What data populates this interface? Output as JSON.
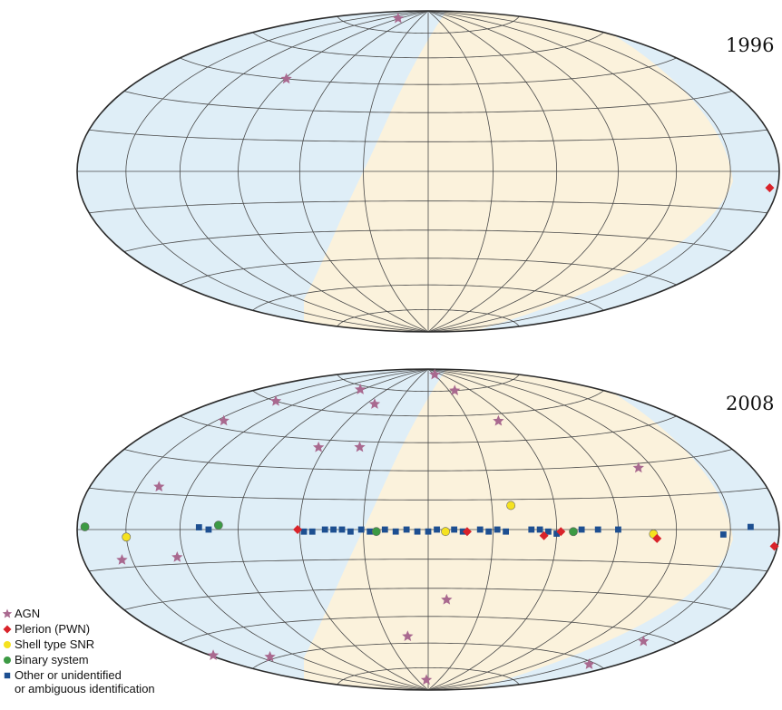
{
  "chart_data": [
    {
      "type": "scatter",
      "projection": "hammer-aitoff",
      "coordinates": "galactic",
      "label": "1996",
      "grid": true,
      "x_unit": "galactic longitude (deg)",
      "y_unit": "galactic latitude (deg)",
      "xlim": [
        180,
        -180
      ],
      "ylim": [
        -90,
        90
      ],
      "visible_sky_color": "#fbf2dc",
      "other_sky_color": "#dfeef7",
      "series": [
        {
          "name": "AGN",
          "marker": "star",
          "color": "#a9698f",
          "points": [
            [
              94,
              83
            ],
            [
              89,
              45
            ]
          ]
        },
        {
          "name": "Plerion (PWN)",
          "marker": "diamond",
          "color": "#d9232a",
          "points": [
            [
              -175,
              -6
            ]
          ]
        }
      ]
    },
    {
      "type": "scatter",
      "projection": "hammer-aitoff",
      "coordinates": "galactic",
      "label": "2008",
      "grid": true,
      "x_unit": "galactic longitude (deg)",
      "y_unit": "galactic latitude (deg)",
      "xlim": [
        180,
        -180
      ],
      "ylim": [
        -90,
        90
      ],
      "visible_sky_color": "#fbf2dc",
      "other_sky_color": "#dfeef7",
      "series": [
        {
          "name": "AGN",
          "marker": "star",
          "color": "#a9698f",
          "points": [
            [
              -32,
              86
            ],
            [
              -38,
              75
            ],
            [
              93,
              73
            ],
            [
              52,
              66
            ],
            [
              140,
              60
            ],
            [
              -52,
              56
            ],
            [
              145,
              48
            ],
            [
              40,
              42
            ],
            [
              64,
              41
            ],
            [
              -112,
              28
            ],
            [
              138,
              18
            ],
            [
              156,
              -12
            ],
            [
              124,
              -12
            ],
            [
              -10,
              -36
            ],
            [
              -156,
              -48
            ],
            [
              178,
              -52
            ],
            [
              15,
              -56
            ],
            [
              142,
              -59
            ],
            [
              -160,
              -61
            ],
            [
              5,
              -83
            ]
          ]
        },
        {
          "name": "Plerion (PWN)",
          "marker": "diamond",
          "color": "#d9232a",
          "points": [
            [
              61,
              0
            ],
            [
              -18,
              -1
            ],
            [
              -54,
              -3
            ],
            [
              -62,
              -1
            ],
            [
              -110,
              -4
            ],
            [
              -178,
              -6
            ]
          ]
        },
        {
          "name": "Shell type SNR",
          "marker": "circle",
          "color": "#f5e21f",
          "points": [
            [
              150,
              -3
            ],
            [
              -8,
              -1
            ],
            [
              -39,
              12
            ],
            [
              -108,
              -2
            ]
          ]
        },
        {
          "name": "Binary system",
          "marker": "circle",
          "color": "#3c9a44",
          "points": [
            [
              175,
              1
            ],
            [
              100,
              2
            ],
            [
              -68,
              -1
            ],
            [
              24,
              -1
            ]
          ]
        },
        {
          "name": "Other or unidentified\nor ambiguous identification",
          "marker": "square",
          "color": "#1d4f91",
          "points": [
            [
              110,
              1
            ],
            [
              105,
              0
            ],
            [
              58,
              -1
            ],
            [
              54,
              -1
            ],
            [
              48,
              0
            ],
            [
              44,
              0
            ],
            [
              40,
              0
            ],
            [
              36,
              -1
            ],
            [
              31,
              0
            ],
            [
              27,
              -1
            ],
            [
              20,
              0
            ],
            [
              15,
              -1
            ],
            [
              10,
              0
            ],
            [
              5,
              -1
            ],
            [
              0,
              -1
            ],
            [
              -4,
              0
            ],
            [
              -12,
              0
            ],
            [
              -16,
              -1
            ],
            [
              -24,
              0
            ],
            [
              -28,
              -1
            ],
            [
              -32,
              0
            ],
            [
              -36,
              -1
            ],
            [
              -48,
              0
            ],
            [
              -52,
              0
            ],
            [
              -56,
              -1
            ],
            [
              -60,
              -2
            ],
            [
              -72,
              0
            ],
            [
              -80,
              0
            ],
            [
              -90,
              0
            ],
            [
              -146,
              -2
            ],
            [
              -162,
              1
            ]
          ]
        }
      ]
    }
  ],
  "legend": {
    "placement": "bottom-left",
    "items": [
      {
        "name": "AGN",
        "marker": "star",
        "color": "#a9698f",
        "line1": "AGN",
        "line2": ""
      },
      {
        "name": "Plerion (PWN)",
        "marker": "diamond",
        "color": "#d9232a",
        "line1": "Plerion (PWN)",
        "line2": ""
      },
      {
        "name": "Shell type SNR",
        "marker": "circle",
        "color": "#f5e21f",
        "line1": "Shell type SNR",
        "line2": ""
      },
      {
        "name": "Binary system",
        "marker": "circle",
        "color": "#3c9a44",
        "line1": "Binary system",
        "line2": ""
      },
      {
        "name": "Other or unidentified or ambiguous identification",
        "marker": "square",
        "color": "#1d4f91",
        "line1": "Other or unidentified",
        "line2": "or ambiguous identification"
      }
    ]
  }
}
